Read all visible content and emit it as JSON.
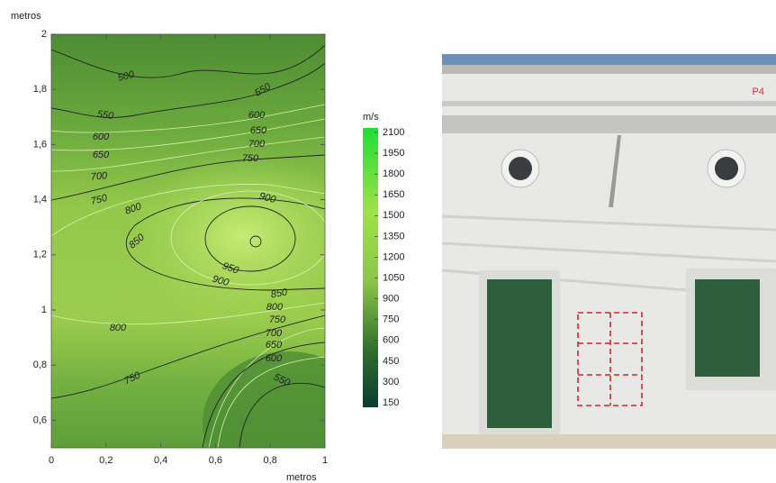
{
  "chart_data": {
    "type": "contour",
    "xlabel": "metros",
    "ylabel": "metros",
    "xlim": [
      0,
      1
    ],
    "ylim": [
      0.5,
      2
    ],
    "xticks": [
      0,
      {
        "value": 0.2,
        "label": "0,2"
      },
      {
        "value": 0.4,
        "label": "0,4"
      },
      {
        "value": 0.6,
        "label": "0,6"
      },
      {
        "value": 0.8,
        "label": "0,8"
      },
      1
    ],
    "yticks": [
      {
        "value": 0.6,
        "label": "0,6"
      },
      {
        "value": 0.8,
        "label": "0,8"
      },
      1,
      {
        "value": 1.2,
        "label": "1,2"
      },
      {
        "value": 1.4,
        "label": "1,4"
      },
      {
        "value": 1.6,
        "label": "1,6"
      },
      {
        "value": 1.8,
        "label": "1,8"
      },
      2
    ],
    "contour_labels": [
      500,
      550,
      550,
      600,
      600,
      650,
      650,
      700,
      700,
      750,
      750,
      800,
      900,
      850,
      950,
      900,
      850,
      800,
      800,
      750,
      700,
      650,
      600,
      750,
      550
    ],
    "colorbar": {
      "title": "m/s",
      "lim": [
        150,
        2100
      ],
      "ticks": [
        150,
        300,
        450,
        600,
        750,
        900,
        1050,
        1200,
        1350,
        1500,
        1650,
        1800,
        1950,
        2100
      ]
    }
  },
  "photo": {
    "label": "P4"
  }
}
